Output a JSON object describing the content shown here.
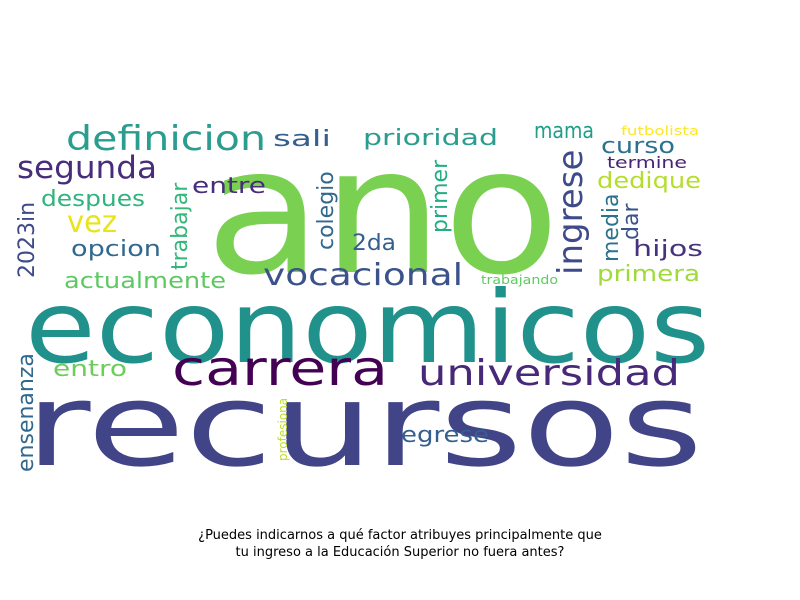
{
  "words": [
    {
      "text": "ano",
      "color": "#7ad151"
    },
    {
      "text": "economicos",
      "color": "#21918c"
    },
    {
      "text": "recursos",
      "color": "#414487"
    },
    {
      "text": "carrera",
      "color": "#440154"
    },
    {
      "text": "universidad",
      "color": "#482878"
    },
    {
      "text": "definicion",
      "color": "#2a9d8f"
    },
    {
      "text": "segunda",
      "color": "#472d7b"
    },
    {
      "text": "vocacional",
      "color": "#3b528b"
    },
    {
      "text": "ingrese",
      "color": "#3e4a89"
    },
    {
      "text": "vez",
      "color": "#e8e419"
    },
    {
      "text": "despues",
      "color": "#2fb47c"
    },
    {
      "text": "opcion",
      "color": "#31688e"
    },
    {
      "text": "2023in",
      "color": "#3e4a89"
    },
    {
      "text": "trabajar",
      "color": "#35b779"
    },
    {
      "text": "entre",
      "color": "#472d7b"
    },
    {
      "text": "colegio",
      "color": "#31688e"
    },
    {
      "text": "sali",
      "color": "#355f8d"
    },
    {
      "text": "prioridad",
      "color": "#2a9d8f"
    },
    {
      "text": "primer",
      "color": "#25ac82"
    },
    {
      "text": "mama",
      "color": "#1f9e89"
    },
    {
      "text": "curso",
      "color": "#2c728e"
    },
    {
      "text": "dedique",
      "color": "#b5de2b"
    },
    {
      "text": "termine",
      "color": "#482475"
    },
    {
      "text": "futbolista",
      "color": "#fde725"
    },
    {
      "text": "media",
      "color": "#2c728e"
    },
    {
      "text": "dar",
      "color": "#3b528b"
    },
    {
      "text": "hijos",
      "color": "#46337f"
    },
    {
      "text": "primera",
      "color": "#a0da39"
    },
    {
      "text": "2da",
      "color": "#355f8d"
    },
    {
      "text": "actualmente",
      "color": "#5ec962"
    },
    {
      "text": "trabajando",
      "color": "#5ec962"
    },
    {
      "text": "ensenanza",
      "color": "#31688e"
    },
    {
      "text": "entro",
      "color": "#6ccd5a"
    },
    {
      "text": "egrese",
      "color": "#355f8d"
    },
    {
      "text": "profesiona",
      "color": "#bddf26"
    }
  ],
  "caption": {
    "line1": "¿Puedes indicarnos a qué factor atribuyes principalmente que",
    "line2": "tu ingreso a la Educación Superior no fuera antes?"
  }
}
